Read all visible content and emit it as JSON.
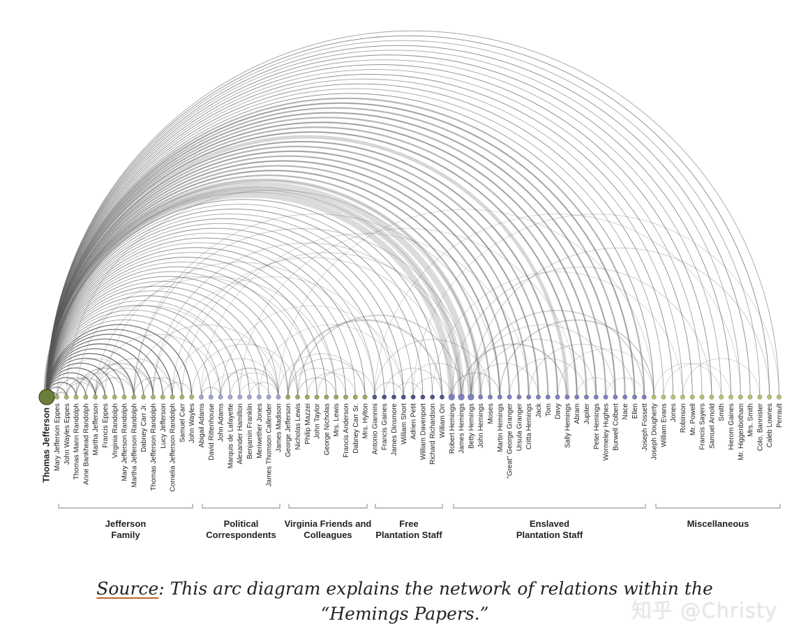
{
  "colors": {
    "family": "#a8b56a",
    "political": "#a2a5d6",
    "friends": "#9ca95e",
    "free_staff": "#4d538e",
    "enslaved": "#7c80c4",
    "misc": "#b8c070",
    "tj": "#6b7d3a",
    "arc": "#5a5a5a",
    "bracket": "#999999"
  },
  "nodes": [
    "Thomas Jefferson",
    "Mary Jefferson Eppes",
    "John Wayles Eppes",
    "Thomas Mann Randolph",
    "Anne Bankhead Randolph",
    "Martha Jefferson",
    "Francis Eppes",
    "Virginia Randolph",
    "Mary Jefferson Randolph",
    "Martha Jefferson Randolph",
    "Dabney Carr Jr.",
    "Thomas Jefferson Randolph",
    "Lucy Jefferson",
    "Cornelia Jefferson Randolph",
    "Samuel Carr",
    "John Wayles",
    "Abigail Adams",
    "David Rittenhouse",
    "John Adams",
    "Marquis de Lafayette",
    "Alexander Hamilton",
    "Benjamin Franklin",
    "Meriwether Jones",
    "James Thomson Callender",
    "James Madison",
    "George Jefferson",
    "Nicholas Lewis",
    "Philip Mazzei",
    "John Taylor",
    "George Nicholas",
    "Mrs. Lewis",
    "Francis Anderson",
    "Dabney Carr Sr.",
    "Mrs. Hylton",
    "Antonio Giannini",
    "Francis Gaines",
    "James Dinsmore",
    "William Short",
    "Adrien Petit",
    "William Davenport",
    "Richard Richardson",
    "William Orr",
    "Robert Hemings",
    "James Hemings",
    "Betty Hemings",
    "John Hemings",
    "Moses",
    "Martin Hemings",
    "\"Great\" George Granger",
    "Ursula Granger",
    "Critta Hemings",
    "Jack",
    "Tom",
    "Davy",
    "Sally Hemings",
    "Abram",
    "Jupiter",
    "Peter Hemings",
    "Wormeley Hughes",
    "Burwell Colbert",
    "Nace",
    "Ellen",
    "Joseph Fossett",
    "Joseph Dougherty",
    "William Evans",
    "Jones",
    "Robinson",
    "Mr. Powell",
    "Francis Sayers",
    "Samuel Arnold",
    "Smith",
    "Hierom Gaines",
    "Mr. Higgenbotham",
    "Mrs. Smith",
    "Colo. Bannister",
    "Caleb Lownes",
    "Perrault"
  ],
  "groups": [
    {
      "lines": [
        "Jefferson",
        "Family"
      ]
    },
    {
      "lines": [
        "Political",
        "Correspondents"
      ]
    },
    {
      "lines": [
        "Virginia Friends and",
        "Colleagues"
      ]
    },
    {
      "lines": [
        "Free",
        "Plantation Staff"
      ]
    },
    {
      "lines": [
        "Enslaved",
        "Plantation Staff"
      ]
    },
    {
      "lines": [
        "Miscellaneous"
      ]
    }
  ],
  "caption": {
    "source_label": "Source",
    "text": ": This arc diagram explains the network of relations within the “Hemings Papers.”"
  },
  "watermark": "知乎 @Christy"
}
